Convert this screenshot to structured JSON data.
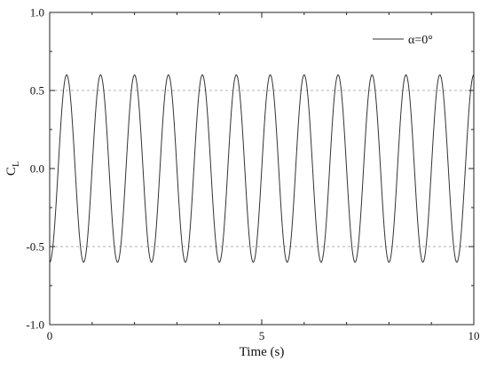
{
  "chart_data": {
    "type": "line",
    "xlabel": "Time (s)",
    "ylabel": "C",
    "ylabel_subscript": "L",
    "xlim": [
      0,
      10
    ],
    "ylim": [
      -1.0,
      1.0
    ],
    "x_ticks": [
      0,
      5,
      10
    ],
    "x_tick_labels": [
      "0",
      "5",
      "10"
    ],
    "y_ticks": [
      -1.0,
      -0.5,
      0.0,
      0.5,
      1.0
    ],
    "y_tick_labels": [
      "-1.0",
      "-0.5",
      "0.0",
      "0.5",
      "1.0"
    ],
    "grid": "dashed horizontal at +/-0.5",
    "legend_position": "top-right",
    "series": [
      {
        "name": "α=0°",
        "color": "#333333",
        "amplitude": 0.6,
        "period": 0.8,
        "x_first_peak": 0.4,
        "x_range": [
          0,
          10
        ]
      }
    ]
  }
}
